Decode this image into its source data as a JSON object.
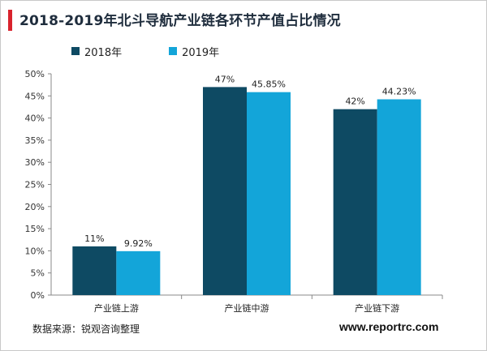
{
  "title": "2018-2019年北斗导航产业链各环节产值占比情况",
  "source": "数据来源：锐观咨询整理",
  "website": "www.reportrc.com",
  "colors": {
    "accent": "#d9232d",
    "series_2018": "#0e4a63",
    "series_2019": "#13a5d9",
    "axis": "#888888"
  },
  "legend": {
    "items": [
      {
        "label": "2018年",
        "color": "#0e4a63"
      },
      {
        "label": "2019年",
        "color": "#13a5d9"
      }
    ]
  },
  "chart_data": {
    "type": "bar",
    "title": "2018-2019年北斗导航产业链各环节产值占比情况",
    "categories": [
      "产业链上游",
      "产业链中游",
      "产业链下游"
    ],
    "series": [
      {
        "name": "2018年",
        "values": [
          11,
          47,
          42
        ],
        "labels": [
          "11%",
          "47%",
          "42%"
        ]
      },
      {
        "name": "2019年",
        "values": [
          9.92,
          45.85,
          44.23
        ],
        "labels": [
          "9.92%",
          "45.85%",
          "44.23%"
        ]
      }
    ],
    "ylim": [
      0,
      50
    ],
    "yticks": [
      0,
      5,
      10,
      15,
      20,
      25,
      30,
      35,
      40,
      45,
      50
    ],
    "ytick_labels": [
      "0%",
      "5%",
      "10%",
      "15%",
      "20%",
      "25%",
      "30%",
      "35%",
      "40%",
      "45%",
      "50%"
    ],
    "legend_position": "top-left",
    "grid": false
  }
}
